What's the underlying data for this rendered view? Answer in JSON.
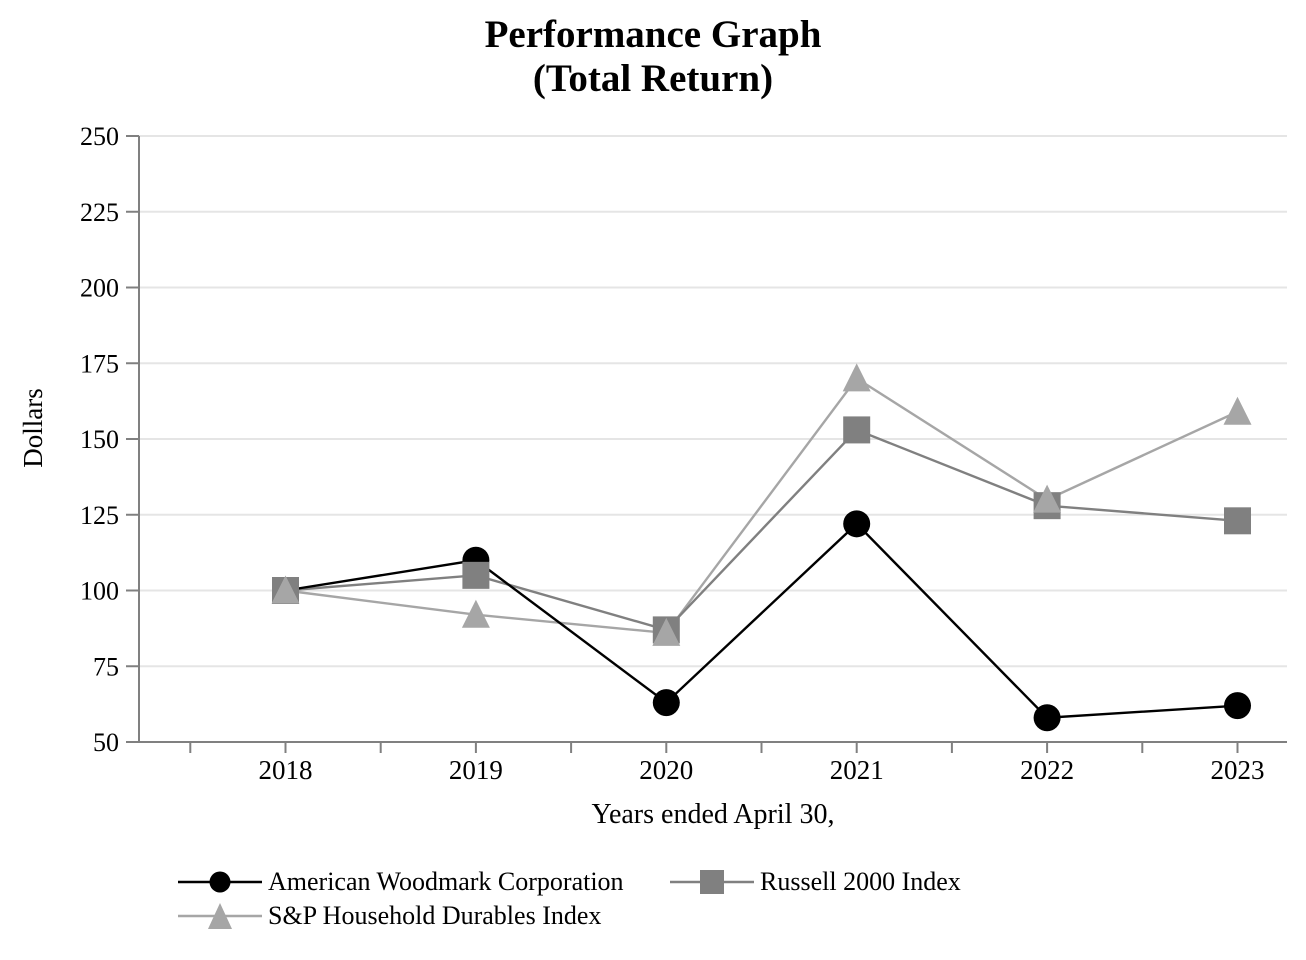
{
  "title": {
    "line1": "Performance Graph",
    "line2": "(Total Return)"
  },
  "chart_data": {
    "type": "line",
    "title": "Performance Graph (Total Return)",
    "categories": [
      "2018",
      "2019",
      "2020",
      "2021",
      "2022",
      "2023"
    ],
    "series": [
      {
        "name": "American Woodmark Corporation",
        "marker": "circle",
        "color": "#000000",
        "values": [
          100,
          110,
          63,
          122,
          58,
          62
        ]
      },
      {
        "name": "Russell 2000 Index",
        "marker": "square",
        "color": "#808080",
        "values": [
          100,
          105,
          87,
          153,
          128,
          123
        ]
      },
      {
        "name": "S&P Household Durables Index",
        "marker": "triangle",
        "color": "#a6a6a6",
        "values": [
          100,
          92,
          86,
          170,
          130,
          159
        ]
      }
    ],
    "xlabel": "Years ended April 30,",
    "ylabel": "Dollars",
    "ylim": [
      50,
      250
    ],
    "yticks": [
      50,
      75,
      100,
      125,
      150,
      175,
      200,
      225,
      250
    ],
    "grid": true,
    "legend_position": "bottom",
    "axis_color": "#808080",
    "grid_color": "#e5e5e5"
  }
}
